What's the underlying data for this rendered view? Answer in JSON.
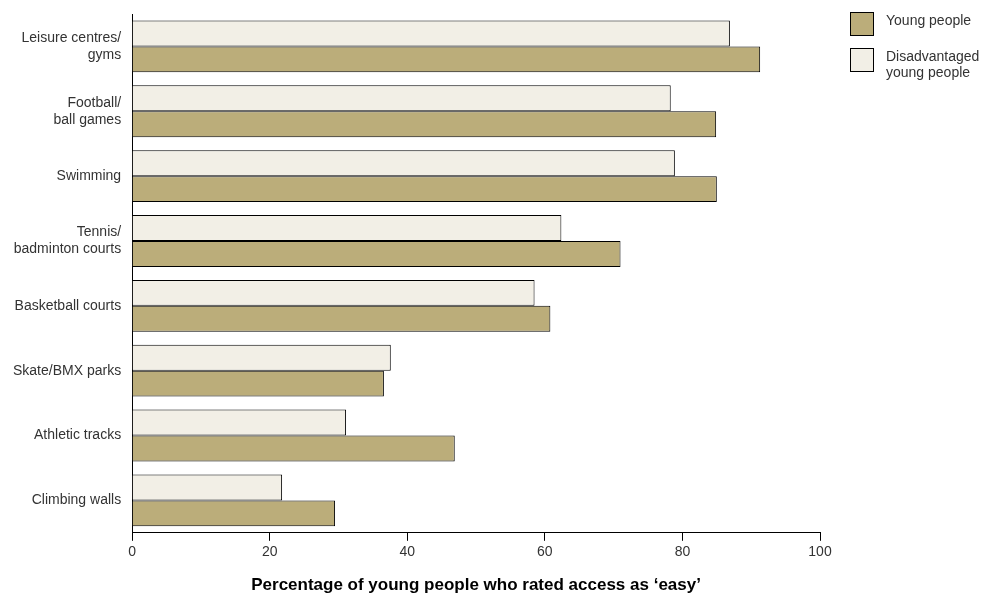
{
  "chart_data": {
    "type": "bar",
    "orientation": "horizontal",
    "xlabel": "Percentage of young people who rated access as ‘easy’",
    "categories": [
      "Leisure centres/\ngyms",
      "Football/\nball games",
      "Swimming",
      "Tennis/\nbadminton courts",
      "Basketball courts",
      "Skate/BMX parks",
      "Athletic tracks",
      "Climbing walls"
    ],
    "series": [
      {
        "name": "Young people",
        "color": "#bbad7a",
        "values": [
          91.3,
          84.9,
          85,
          71,
          60.8,
          36.6,
          46.9,
          29.5
        ]
      },
      {
        "name": "Disadvantaged young people",
        "color": "#f2efe6",
        "values": [
          86.9,
          78.3,
          78.9,
          62.4,
          58.5,
          37.6,
          31.1,
          21.8
        ]
      }
    ],
    "xlim": [
      0,
      100
    ],
    "xticks": [
      0,
      20,
      40,
      60,
      80,
      100
    ],
    "grid": false,
    "legend": "top right"
  }
}
